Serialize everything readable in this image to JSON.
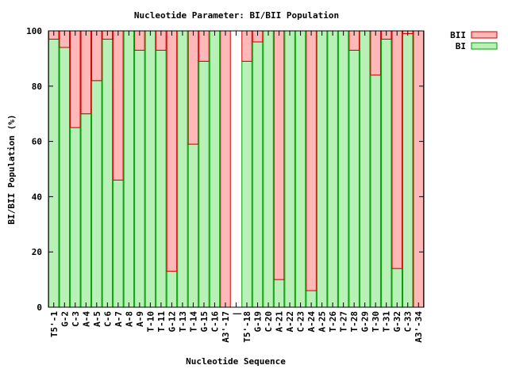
{
  "chart_data": {
    "type": "bar",
    "stacked": true,
    "title": "Nucleotide Parameter: BI/BII Population",
    "xlabel": "Nucleotide Sequence",
    "ylabel": "BI/BII Population (%)",
    "ylim": [
      0,
      100
    ],
    "yticks": [
      0,
      20,
      40,
      60,
      80,
      100
    ],
    "grid": false,
    "legend_position": "top-right",
    "categories": [
      "T5'-1",
      "G-2",
      "C-3",
      "A-4",
      "A-5",
      "C-6",
      "A-7",
      "A-8",
      "A-9",
      "T-10",
      "T-11",
      "G-12",
      "T-13",
      "T-14",
      "G-15",
      "C-16",
      "A3'-17",
      "|",
      "T5'-18",
      "G-19",
      "C-20",
      "A-21",
      "A-22",
      "C-23",
      "A-24",
      "A-25",
      "T-26",
      "T-27",
      "T-28",
      "G-29",
      "T-30",
      "T-31",
      "G-32",
      "C-33",
      "A3'-34"
    ],
    "series": [
      {
        "name": "BII",
        "color": "#ffb8b8",
        "stroke": "#cc0000",
        "values": [
          3,
          6,
          35,
          30,
          18,
          3,
          54,
          0,
          7,
          0,
          7,
          87,
          0,
          41,
          11,
          0,
          100,
          0,
          11,
          4,
          0,
          90,
          0,
          0,
          94,
          0,
          0,
          0,
          7,
          0,
          16,
          3,
          86,
          1,
          100
        ]
      },
      {
        "name": "BI",
        "color": "#b8f0b8",
        "stroke": "#00a000",
        "values": [
          97,
          94,
          65,
          70,
          82,
          97,
          46,
          100,
          93,
          100,
          93,
          13,
          100,
          59,
          89,
          100,
          0,
          0,
          89,
          96,
          100,
          10,
          100,
          100,
          6,
          100,
          100,
          100,
          93,
          100,
          84,
          97,
          14,
          99,
          0
        ]
      }
    ]
  }
}
